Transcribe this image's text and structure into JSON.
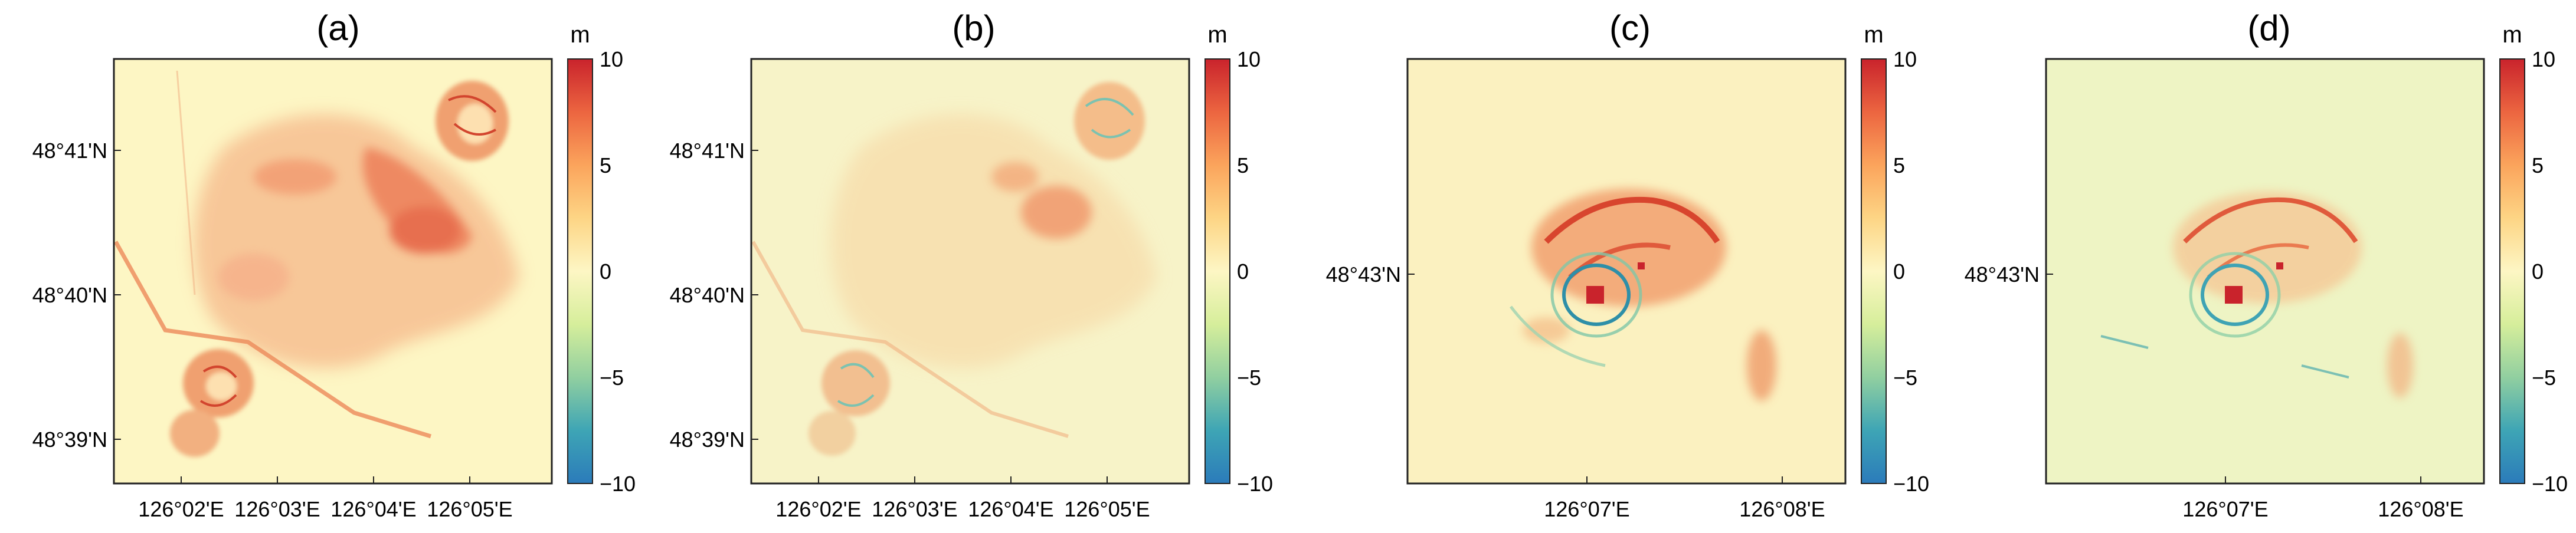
{
  "panels": [
    {
      "title": "(a)",
      "unit": "m",
      "colorbar_ticks": [
        "10",
        "5",
        "0",
        "−5",
        "−10"
      ],
      "y_ticks": [
        "48°41'N",
        "48°40'N",
        "48°39'N"
      ],
      "x_ticks": [
        "126°02'E",
        "126°03'E",
        "126°04'E",
        "126°05'E"
      ]
    },
    {
      "title": "(b)",
      "unit": "m",
      "colorbar_ticks": [
        "10",
        "5",
        "0",
        "−5",
        "−10"
      ],
      "y_ticks": [
        "48°41'N",
        "48°40'N",
        "48°39'N"
      ],
      "x_ticks": [
        "126°02'E",
        "126°03'E",
        "126°04'E",
        "126°05'E"
      ]
    },
    {
      "title": "(c)",
      "unit": "m",
      "colorbar_ticks": [
        "10",
        "5",
        "0",
        "−5",
        "−10"
      ],
      "y_ticks": [
        "48°43'N"
      ],
      "x_ticks": [
        "126°07'E",
        "126°08'E"
      ]
    },
    {
      "title": "(d)",
      "unit": "m",
      "colorbar_ticks": [
        "10",
        "5",
        "0",
        "−5",
        "−10"
      ],
      "y_ticks": [
        "48°43'N"
      ],
      "x_ticks": [
        "126°07'E",
        "126°08'E"
      ]
    }
  ],
  "colors": {
    "background": "#fdf6c4",
    "colormap": [
      "#2b7bba",
      "#3ea5b5",
      "#91cfa0",
      "#d6ee9b",
      "#fdf6c4",
      "#fdd585",
      "#fba45c",
      "#ec6540",
      "#c9232c"
    ]
  },
  "colorbar_range": [
    -10,
    10
  ]
}
